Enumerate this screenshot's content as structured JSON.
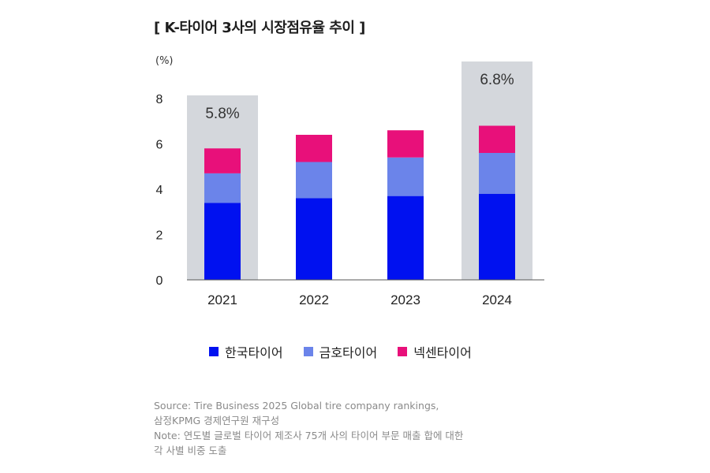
{
  "title": "[ K-타이어 3사의 시장점유율 추이 ]",
  "unit_label": "(%)",
  "colors": {
    "hankook": "#0011f0",
    "kumho": "#6b84ea",
    "nexen": "#e8107a",
    "highlight_box": "#d4d7dc"
  },
  "chart_data": {
    "type": "bar",
    "stacked": true,
    "categories": [
      "2021",
      "2022",
      "2023",
      "2024"
    ],
    "series": [
      {
        "name": "한국타이어",
        "values": [
          3.4,
          3.6,
          3.7,
          3.8
        ]
      },
      {
        "name": "금호타이어",
        "values": [
          1.3,
          1.6,
          1.7,
          1.8
        ]
      },
      {
        "name": "넥센타이어",
        "values": [
          1.1,
          1.2,
          1.2,
          1.2
        ]
      }
    ],
    "highlights": [
      {
        "category": "2021",
        "label": "5.8%"
      },
      {
        "category": "2024",
        "label": "6.8%"
      }
    ],
    "yticks": [
      "0",
      "2",
      "4",
      "6",
      "8"
    ],
    "ylim": [
      0,
      8
    ],
    "grid": false,
    "legend_position": "bottom"
  },
  "notes": [
    "Source: Tire Business 2025 Global tire company rankings,",
    "삼정KPMG 경제연구원 재구성",
    "Note: 연도별 글로벌 타이어 제조사 75개 사의 타이어 부문 매출 합에 대한",
    "각 사별 비중 도출"
  ]
}
